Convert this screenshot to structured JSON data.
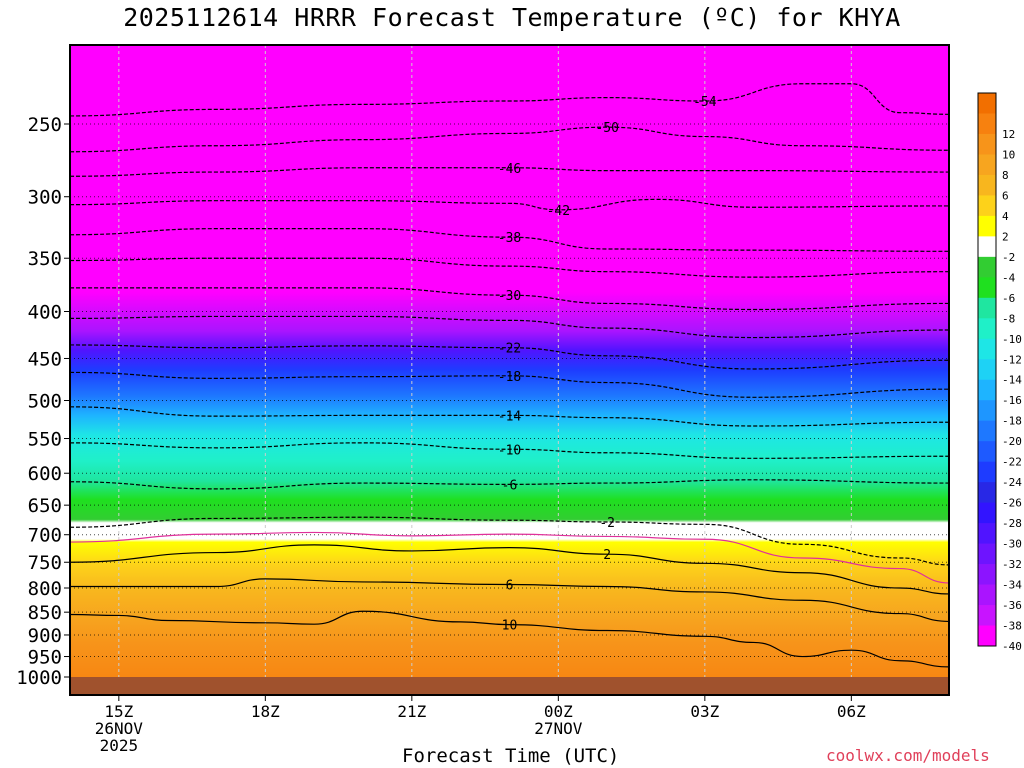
{
  "title": "2025112614 HRRR Forecast Temperature (ºC) for KHYA",
  "credit": "coolwx.com/models",
  "chart_data": {
    "type": "contour",
    "variable": "Temperature",
    "units": "ºC",
    "station": "KHYA",
    "model": "HRRR",
    "init": "2025112614",
    "xlabel": "Forecast Time (UTC)",
    "ylabel": "",
    "x_start": "2025-11-26T14Z",
    "x_end": "2025-11-27T08Z",
    "x_ticks": [
      {
        "t": "2025-11-26T15Z",
        "label": "15Z",
        "line2": "26NOV",
        "line3": "2025"
      },
      {
        "t": "2025-11-26T18Z",
        "label": "18Z",
        "line2": "",
        "line3": ""
      },
      {
        "t": "2025-11-26T21Z",
        "label": "21Z",
        "line2": "",
        "line3": ""
      },
      {
        "t": "2025-11-27T00Z",
        "label": "00Z",
        "line2": "27NOV",
        "line3": ""
      },
      {
        "t": "2025-11-27T03Z",
        "label": "03Z",
        "line2": "",
        "line3": ""
      },
      {
        "t": "2025-11-27T06Z",
        "label": "06Z",
        "line2": "",
        "line3": ""
      }
    ],
    "y_axis": "pressure",
    "y_unit": "hPa",
    "y_scale": "log",
    "y_range_hpa": [
      1030,
      200
    ],
    "y_ticks": [
      250,
      300,
      350,
      400,
      450,
      500,
      550,
      600,
      650,
      700,
      750,
      800,
      850,
      900,
      950,
      1000
    ],
    "dotted_levels_hpa": [
      250,
      300,
      350,
      400,
      450,
      500,
      550,
      600,
      650,
      700,
      750,
      800,
      850,
      900,
      950
    ],
    "ground_hpa": 1000,
    "colorbar": [
      {
        "label": "",
        "color": "#f26f00"
      },
      {
        "label": "12",
        "color": "#f7810f"
      },
      {
        "label": "10",
        "color": "#f7941a"
      },
      {
        "label": "8",
        "color": "#f7a51f"
      },
      {
        "label": "6",
        "color": "#f8b61e"
      },
      {
        "label": "4",
        "color": "#fdd21a"
      },
      {
        "label": "2",
        "color": "#ffff00"
      },
      {
        "label": "-2",
        "color": "#ffffff"
      },
      {
        "label": "-4",
        "color": "#32cd32"
      },
      {
        "label": "-6",
        "color": "#1fe01f"
      },
      {
        "label": "-8",
        "color": "#1fe6a0"
      },
      {
        "label": "-10",
        "color": "#1ff0c8"
      },
      {
        "label": "-12",
        "color": "#1ee6e6"
      },
      {
        "label": "-14",
        "color": "#1ed2f5"
      },
      {
        "label": "-16",
        "color": "#1eb4ff"
      },
      {
        "label": "-18",
        "color": "#1e96ff"
      },
      {
        "label": "-20",
        "color": "#1e78ff"
      },
      {
        "label": "-22",
        "color": "#1e5aff"
      },
      {
        "label": "-24",
        "color": "#1e3cff"
      },
      {
        "label": "-26",
        "color": "#2828e6"
      },
      {
        "label": "-28",
        "color": "#3214ff"
      },
      {
        "label": "-30",
        "color": "#5014ff"
      },
      {
        "label": "-32",
        "color": "#6e14ff"
      },
      {
        "label": "-34",
        "color": "#8c14ff"
      },
      {
        "label": "-36",
        "color": "#aa14ff"
      },
      {
        "label": "-38",
        "color": "#c814ff"
      },
      {
        "label": "-40",
        "color": "#ff00ff"
      }
    ],
    "isotherms": [
      {
        "t": -54,
        "style": "dashed",
        "label": "-54",
        "points": [
          [
            "2025-11-26T14Z",
            245
          ],
          [
            "2025-11-26T17Z",
            241
          ],
          [
            "2025-11-26T20Z",
            238
          ],
          [
            "2025-11-26T23Z",
            236
          ],
          [
            "2025-11-27T01Z",
            234
          ],
          [
            "2025-11-27T03Z",
            236
          ],
          [
            "2025-11-27T05Z",
            226
          ],
          [
            "2025-11-27T06Z",
            226
          ],
          [
            "2025-11-27T07Z",
            243
          ],
          [
            "2025-11-27T08Z",
            244
          ]
        ]
      },
      {
        "t": -50,
        "style": "dashed",
        "label": "-50",
        "points": [
          [
            "2025-11-26T14Z",
            268
          ],
          [
            "2025-11-26T17Z",
            264
          ],
          [
            "2025-11-26T20Z",
            260
          ],
          [
            "2025-11-26T23Z",
            256
          ],
          [
            "2025-11-27T01Z",
            252
          ],
          [
            "2025-11-27T03Z",
            258
          ],
          [
            "2025-11-27T05Z",
            264
          ],
          [
            "2025-11-27T08Z",
            267
          ]
        ]
      },
      {
        "t": -46,
        "style": "dashed",
        "label": "-46",
        "points": [
          [
            "2025-11-26T14Z",
            285
          ],
          [
            "2025-11-26T17Z",
            282
          ],
          [
            "2025-11-26T20Z",
            279
          ],
          [
            "2025-11-26T23Z",
            279
          ],
          [
            "2025-11-27T01Z",
            281
          ],
          [
            "2025-11-27T04Z",
            281
          ],
          [
            "2025-11-27T08Z",
            282
          ]
        ]
      },
      {
        "t": -42,
        "style": "dashed",
        "label": "-42",
        "points": [
          [
            "2025-11-26T14Z",
            306
          ],
          [
            "2025-11-26T17Z",
            303
          ],
          [
            "2025-11-26T20Z",
            303
          ],
          [
            "2025-11-26T23Z",
            305
          ],
          [
            "2025-11-27T00Z",
            310
          ],
          [
            "2025-11-27T02Z",
            302
          ],
          [
            "2025-11-27T04Z",
            308
          ],
          [
            "2025-11-27T08Z",
            307
          ]
        ]
      },
      {
        "t": -38,
        "style": "dashed",
        "label": "-38",
        "points": [
          [
            "2025-11-26T14Z",
            330
          ],
          [
            "2025-11-26T17Z",
            325
          ],
          [
            "2025-11-26T20Z",
            325
          ],
          [
            "2025-11-26T23Z",
            332
          ],
          [
            "2025-11-27T01Z",
            342
          ],
          [
            "2025-11-27T04Z",
            343
          ],
          [
            "2025-11-27T08Z",
            344
          ]
        ]
      },
      {
        "t": -34,
        "style": "dashed",
        "label": "",
        "points": [
          [
            "2025-11-26T14Z",
            352
          ],
          [
            "2025-11-26T17Z",
            350
          ],
          [
            "2025-11-26T20Z",
            350
          ],
          [
            "2025-11-26T23Z",
            357
          ],
          [
            "2025-11-27T01Z",
            362
          ],
          [
            "2025-11-27T04Z",
            367
          ],
          [
            "2025-11-27T08Z",
            362
          ]
        ]
      },
      {
        "t": -30,
        "style": "dashed",
        "label": "-30",
        "points": [
          [
            "2025-11-26T14Z",
            377
          ],
          [
            "2025-11-26T17Z",
            377
          ],
          [
            "2025-11-26T20Z",
            377
          ],
          [
            "2025-11-26T23Z",
            384
          ],
          [
            "2025-11-27T01Z",
            392
          ],
          [
            "2025-11-27T04Z",
            398
          ],
          [
            "2025-11-27T08Z",
            392
          ]
        ]
      },
      {
        "t": -26,
        "style": "dashed",
        "label": "",
        "points": [
          [
            "2025-11-26T14Z",
            407
          ],
          [
            "2025-11-26T17Z",
            405
          ],
          [
            "2025-11-26T20Z",
            405
          ],
          [
            "2025-11-26T23Z",
            409
          ],
          [
            "2025-11-27T01Z",
            417
          ],
          [
            "2025-11-27T04Z",
            427
          ],
          [
            "2025-11-27T08Z",
            419
          ]
        ]
      },
      {
        "t": -22,
        "style": "dashed",
        "label": "-22",
        "points": [
          [
            "2025-11-26T14Z",
            435
          ],
          [
            "2025-11-26T17Z",
            438
          ],
          [
            "2025-11-26T20Z",
            436
          ],
          [
            "2025-11-26T23Z",
            438
          ],
          [
            "2025-11-27T01Z",
            447
          ],
          [
            "2025-11-27T04Z",
            462
          ],
          [
            "2025-11-27T08Z",
            452
          ]
        ]
      },
      {
        "t": -18,
        "style": "dashed",
        "label": "-18",
        "points": [
          [
            "2025-11-26T14Z",
            466
          ],
          [
            "2025-11-26T17Z",
            473
          ],
          [
            "2025-11-26T20Z",
            471
          ],
          [
            "2025-11-26T23Z",
            470
          ],
          [
            "2025-11-27T01Z",
            478
          ],
          [
            "2025-11-27T04Z",
            496
          ],
          [
            "2025-11-27T08Z",
            486
          ]
        ]
      },
      {
        "t": -14,
        "style": "dashed",
        "label": "-14",
        "points": [
          [
            "2025-11-26T14Z",
            508
          ],
          [
            "2025-11-26T17Z",
            520
          ],
          [
            "2025-11-26T20Z",
            519
          ],
          [
            "2025-11-26T23Z",
            519
          ],
          [
            "2025-11-27T01Z",
            522
          ],
          [
            "2025-11-27T04Z",
            533
          ],
          [
            "2025-11-27T08Z",
            528
          ]
        ]
      },
      {
        "t": -10,
        "style": "dashed",
        "label": "-10",
        "points": [
          [
            "2025-11-26T14Z",
            556
          ],
          [
            "2025-11-26T17Z",
            563
          ],
          [
            "2025-11-26T20Z",
            556
          ],
          [
            "2025-11-26T23Z",
            565
          ],
          [
            "2025-11-27T01Z",
            570
          ],
          [
            "2025-11-27T04Z",
            578
          ],
          [
            "2025-11-27T08Z",
            575
          ]
        ]
      },
      {
        "t": -6,
        "style": "dashed",
        "label": "-6",
        "points": [
          [
            "2025-11-26T14Z",
            613
          ],
          [
            "2025-11-26T17Z",
            624
          ],
          [
            "2025-11-26T20Z",
            615
          ],
          [
            "2025-11-26T23Z",
            617
          ],
          [
            "2025-11-27T01Z",
            615
          ],
          [
            "2025-11-27T04Z",
            610
          ],
          [
            "2025-11-27T08Z",
            615
          ]
        ]
      },
      {
        "t": -2,
        "style": "dashed",
        "label": "-2",
        "points": [
          [
            "2025-11-26T14Z",
            687
          ],
          [
            "2025-11-26T17Z",
            672
          ],
          [
            "2025-11-26T20Z",
            670
          ],
          [
            "2025-11-26T23Z",
            675
          ],
          [
            "2025-11-27T01Z",
            678
          ],
          [
            "2025-11-27T03Z",
            682
          ],
          [
            "2025-11-27T05Z",
            717
          ],
          [
            "2025-11-27T07Z",
            742
          ],
          [
            "2025-11-27T08Z",
            755
          ]
        ]
      },
      {
        "t": 0,
        "style": "solid",
        "color": "#e0309a",
        "label": "",
        "points": [
          [
            "2025-11-26T14Z",
            713
          ],
          [
            "2025-11-26T17Z",
            699
          ],
          [
            "2025-11-26T19Z",
            696
          ],
          [
            "2025-11-26T21Z",
            702
          ],
          [
            "2025-11-26T23Z",
            699
          ],
          [
            "2025-11-27T01Z",
            703
          ],
          [
            "2025-11-27T03Z",
            708
          ],
          [
            "2025-11-27T05Z",
            742
          ],
          [
            "2025-11-27T07Z",
            762
          ],
          [
            "2025-11-27T08Z",
            790
          ]
        ]
      },
      {
        "t": 2,
        "style": "solid",
        "label": "2",
        "points": [
          [
            "2025-11-26T14Z",
            750
          ],
          [
            "2025-11-26T17Z",
            732
          ],
          [
            "2025-11-26T19Z",
            718
          ],
          [
            "2025-11-26T21Z",
            729
          ],
          [
            "2025-11-26T23Z",
            723
          ],
          [
            "2025-11-27T01Z",
            735
          ],
          [
            "2025-11-27T03Z",
            752
          ],
          [
            "2025-11-27T05Z",
            770
          ],
          [
            "2025-11-27T07Z",
            800
          ],
          [
            "2025-11-27T08Z",
            812
          ]
        ]
      },
      {
        "t": 6,
        "style": "solid",
        "label": "6",
        "points": [
          [
            "2025-11-26T14Z",
            797
          ],
          [
            "2025-11-26T16Z",
            797
          ],
          [
            "2025-11-26T17Z",
            797
          ],
          [
            "2025-11-26T18Z",
            782
          ],
          [
            "2025-11-26T20Z",
            788
          ],
          [
            "2025-11-26T23Z",
            793
          ],
          [
            "2025-11-27T01Z",
            797
          ],
          [
            "2025-11-27T03Z",
            808
          ],
          [
            "2025-11-27T05Z",
            825
          ],
          [
            "2025-11-27T07Z",
            853
          ],
          [
            "2025-11-27T08Z",
            870
          ]
        ]
      },
      {
        "t": 10,
        "style": "solid",
        "label": "10",
        "points": [
          [
            "2025-11-26T14Z",
            855
          ],
          [
            "2025-11-26T15Z",
            857
          ],
          [
            "2025-11-26T16Z",
            868
          ],
          [
            "2025-11-26T18Z",
            873
          ],
          [
            "2025-11-26T19Z",
            876
          ],
          [
            "2025-11-26T20Z",
            848
          ],
          [
            "2025-11-26T22Z",
            871
          ],
          [
            "2025-11-26T23Z",
            877
          ],
          [
            "2025-11-27T01Z",
            890
          ],
          [
            "2025-11-27T03Z",
            903
          ],
          [
            "2025-11-27T04Z",
            917
          ],
          [
            "2025-11-27T05Z",
            950
          ],
          [
            "2025-11-27T06Z",
            935
          ],
          [
            "2025-11-27T07Z",
            960
          ],
          [
            "2025-11-27T08Z",
            975
          ]
        ]
      }
    ]
  }
}
